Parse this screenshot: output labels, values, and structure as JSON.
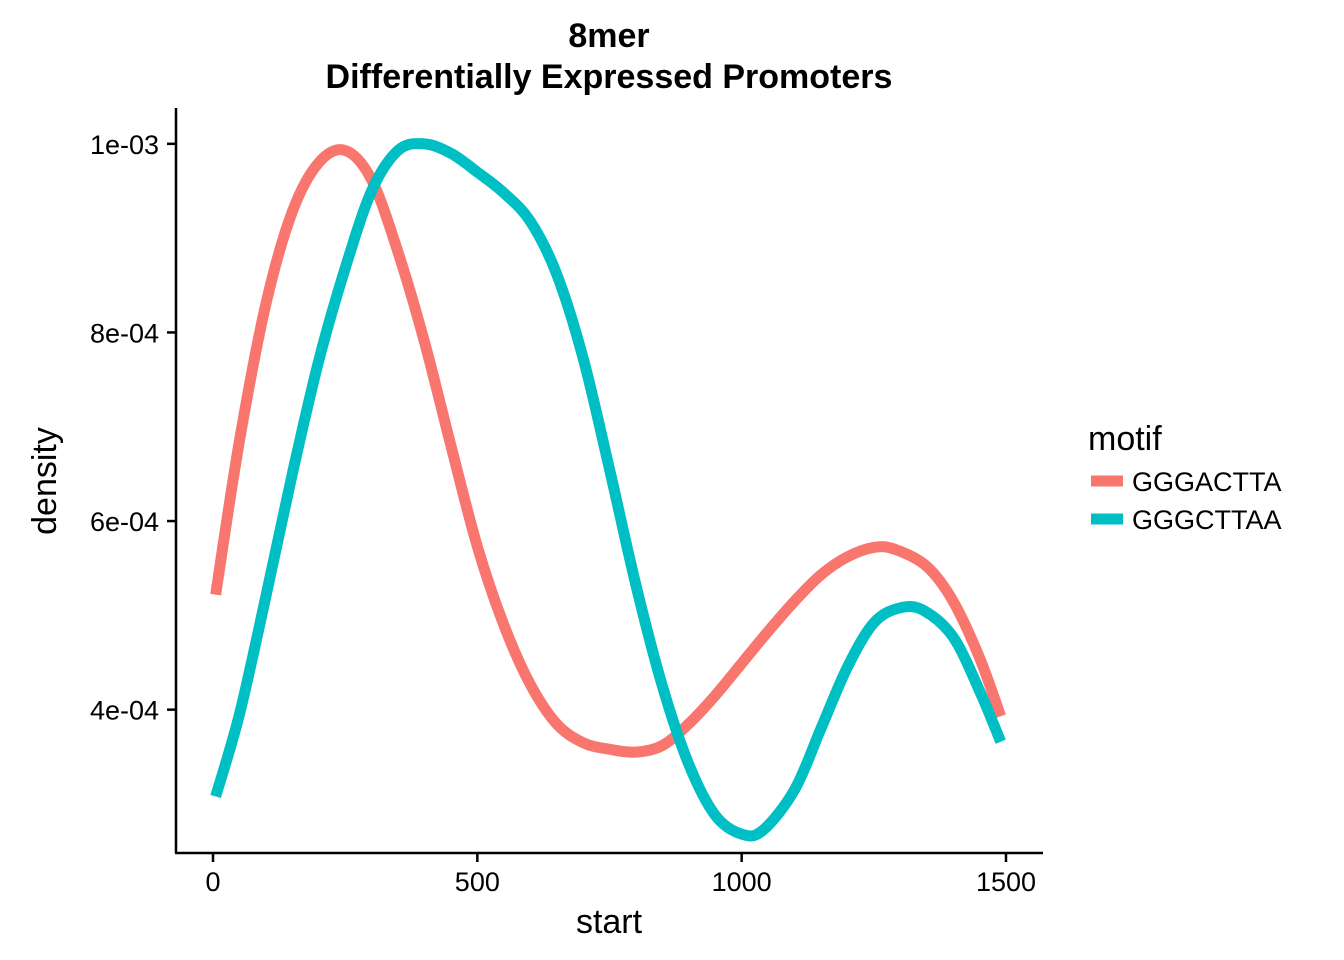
{
  "chart_data": {
    "type": "line",
    "title_lines": [
      "8mer",
      "Differentially Expressed Promoters"
    ],
    "xlabel": "start",
    "ylabel": "density",
    "xlim": [
      -70,
      1570
    ],
    "ylim": [
      0.000248,
      0.001038
    ],
    "x_ticks": [
      0,
      500,
      1000,
      1500
    ],
    "x_tick_labels": [
      "0",
      "500",
      "1000",
      "1500"
    ],
    "y_ticks": [
      0.0004,
      0.0006,
      0.0008,
      0.001
    ],
    "y_tick_labels": [
      "4e-04",
      "6e-04",
      "8e-04",
      "1e-03"
    ],
    "grid": false,
    "legend": {
      "title": "motif",
      "position": "right"
    },
    "series": [
      {
        "name": "GGGACTTA",
        "color": "#F8766D",
        "x": [
          5,
          50,
          100,
          150,
          200,
          250,
          300,
          350,
          400,
          450,
          500,
          550,
          600,
          650,
          700,
          750,
          800,
          850,
          900,
          950,
          1000,
          1050,
          1100,
          1150,
          1200,
          1250,
          1290,
          1350,
          1400,
          1450,
          1490
        ],
        "y": [
          0.000522,
          0.000685,
          0.00083,
          0.000928,
          0.00098,
          0.000993,
          0.000962,
          0.000885,
          0.00079,
          0.00068,
          0.000573,
          0.00049,
          0.000427,
          0.000385,
          0.000365,
          0.000358,
          0.000355,
          0.000362,
          0.000385,
          0.000415,
          0.000449,
          0.000483,
          0.000515,
          0.000543,
          0.000562,
          0.000572,
          0.00057,
          0.000552,
          0.000515,
          0.000455,
          0.000393
        ]
      },
      {
        "name": "GGGCTTAA",
        "color": "#00BFC4",
        "x": [
          5,
          50,
          100,
          150,
          200,
          250,
          300,
          350,
          400,
          450,
          500,
          550,
          600,
          650,
          700,
          750,
          800,
          850,
          900,
          950,
          1000,
          1040,
          1100,
          1150,
          1200,
          1250,
          1300,
          1345,
          1400,
          1450,
          1490
        ],
        "y": [
          0.000308,
          0.000395,
          0.00052,
          0.00065,
          0.00077,
          0.000868,
          0.00095,
          0.000993,
          0.001,
          0.00099,
          0.00097,
          0.000948,
          0.000918,
          0.000862,
          0.000773,
          0.000655,
          0.000532,
          0.000425,
          0.000342,
          0.000288,
          0.000268,
          0.000272,
          0.000315,
          0.00038,
          0.000445,
          0.000492,
          0.000508,
          0.000505,
          0.000477,
          0.00042,
          0.000366
        ]
      }
    ]
  }
}
